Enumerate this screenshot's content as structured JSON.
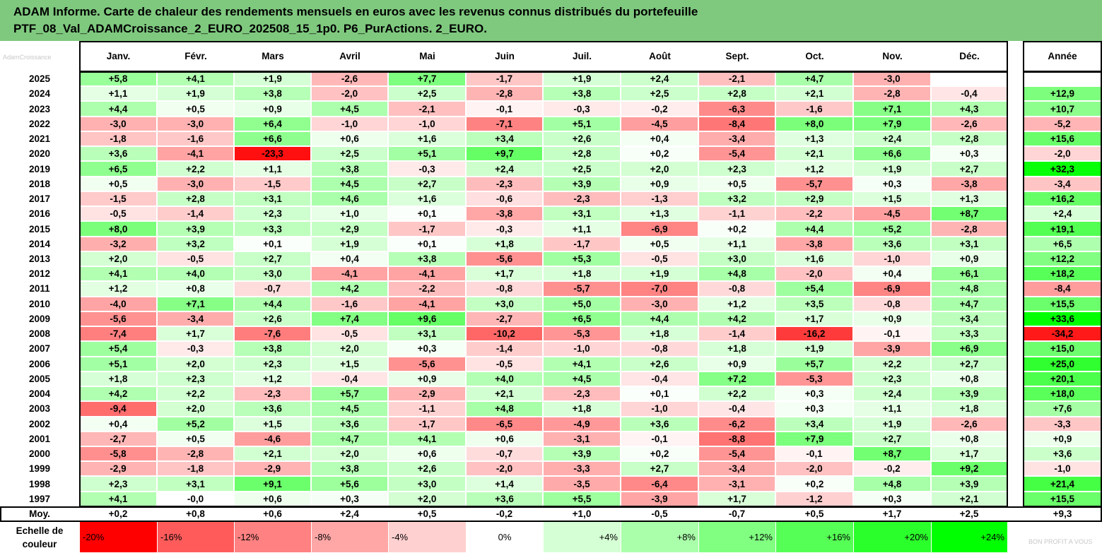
{
  "title_line1": "ADAM Informe. Carte de chaleur des rendements mensuels en euros avec les revenus connus distribués du portefeuille",
  "title_line2": "PTF_08_Val_ADAMCroissance_2_EURO_202508_15_1p0. P6_PurActions. 2_EURO.",
  "watermark": "AdamCroissance",
  "footer_watermark": "BON PROFIT A VOUS",
  "chart_data": {
    "type": "heatmap",
    "months": [
      "Janv.",
      "Févr.",
      "Mars",
      "Avril",
      "Mai",
      "Juin",
      "Juil.",
      "Août",
      "Sept.",
      "Oct.",
      "Nov.",
      "Déc."
    ],
    "annual_label": "Année",
    "average_label": "Moy.",
    "rows": [
      {
        "year": "2025",
        "values": [
          "+5,8",
          "+4,1",
          "+1,9",
          "-2,6",
          "+7,7",
          "-1,7",
          "+1,9",
          "+2,4",
          "-2,1",
          "+4,7",
          "-3,0",
          ""
        ],
        "annual": ""
      },
      {
        "year": "2024",
        "values": [
          "+1,1",
          "+1,9",
          "+3,8",
          "-2,0",
          "+2,5",
          "-2,8",
          "+3,8",
          "+2,5",
          "+2,8",
          "+2,1",
          "-2,8",
          "-0,4"
        ],
        "annual": "+12,9"
      },
      {
        "year": "2023",
        "values": [
          "+4,4",
          "+0,5",
          "+0,9",
          "+4,5",
          "-2,1",
          "-0,1",
          "-0,3",
          "-0,2",
          "-6,3",
          "-1,6",
          "+7,1",
          "+4,3"
        ],
        "annual": "+10,7"
      },
      {
        "year": "2022",
        "values": [
          "-3,0",
          "-3,0",
          "+6,4",
          "-1,0",
          "-1,0",
          "-7,1",
          "+5,1",
          "-4,5",
          "-8,4",
          "+8,0",
          "+7,9",
          "-2,6"
        ],
        "annual": "-5,2"
      },
      {
        "year": "2021",
        "values": [
          "-1,8",
          "-1,6",
          "+6,6",
          "+0,6",
          "+1,6",
          "+3,4",
          "+2,6",
          "+0,4",
          "-3,4",
          "+1,3",
          "+2,4",
          "+2,8"
        ],
        "annual": "+15,6"
      },
      {
        "year": "2020",
        "values": [
          "+3,6",
          "-4,1",
          "-23,3",
          "+2,5",
          "+5,1",
          "+9,7",
          "+2,8",
          "+0,2",
          "-5,4",
          "+2,1",
          "+6,6",
          "+0,3"
        ],
        "annual": "-2,0"
      },
      {
        "year": "2019",
        "values": [
          "+6,5",
          "+2,2",
          "+1,1",
          "+3,8",
          "-0,3",
          "+2,4",
          "+2,5",
          "+2,0",
          "+2,3",
          "+1,2",
          "+1,9",
          "+2,7"
        ],
        "annual": "+32,3"
      },
      {
        "year": "2018",
        "values": [
          "+0,5",
          "-3,0",
          "-1,5",
          "+4,5",
          "+2,7",
          "-2,3",
          "+3,9",
          "+0,9",
          "+0,5",
          "-5,7",
          "+0,3",
          "-3,8"
        ],
        "annual": "-3,4"
      },
      {
        "year": "2017",
        "values": [
          "-1,5",
          "+2,8",
          "+3,1",
          "+4,6",
          "+1,6",
          "-0,6",
          "-2,3",
          "-1,3",
          "+3,2",
          "+2,9",
          "+1,5",
          "+1,3"
        ],
        "annual": "+16,2"
      },
      {
        "year": "2016",
        "values": [
          "-0,5",
          "-1,4",
          "+2,3",
          "+1,0",
          "+0,1",
          "-3,8",
          "+3,1",
          "+1,3",
          "-1,1",
          "-2,2",
          "-4,5",
          "+8,7"
        ],
        "annual": "+2,4"
      },
      {
        "year": "2015",
        "values": [
          "+8,0",
          "+3,9",
          "+3,3",
          "+2,9",
          "-1,7",
          "-0,3",
          "+1,1",
          "-6,9",
          "+0,2",
          "+4,4",
          "+5,2",
          "-2,8"
        ],
        "annual": "+19,1"
      },
      {
        "year": "2014",
        "values": [
          "-3,2",
          "+3,2",
          "+0,1",
          "+1,9",
          "+0,1",
          "+1,8",
          "-1,7",
          "+0,5",
          "+1,1",
          "-3,8",
          "+3,6",
          "+3,1"
        ],
        "annual": "+6,5"
      },
      {
        "year": "2013",
        "values": [
          "+2,0",
          "-0,5",
          "+2,7",
          "+0,4",
          "+3,8",
          "-5,6",
          "+5,3",
          "-0,5",
          "+3,0",
          "+1,6",
          "-1,0",
          "+0,9"
        ],
        "annual": "+12,2"
      },
      {
        "year": "2012",
        "values": [
          "+4,1",
          "+4,0",
          "+3,0",
          "-4,1",
          "-4,1",
          "+1,7",
          "+1,8",
          "+1,9",
          "+4,8",
          "-2,0",
          "+0,4",
          "+6,1"
        ],
        "annual": "+18,2"
      },
      {
        "year": "2011",
        "values": [
          "+1,2",
          "+0,8",
          "-0,7",
          "+4,2",
          "-2,2",
          "-0,8",
          "-5,7",
          "-7,0",
          "-0,8",
          "+5,4",
          "-6,9",
          "+4,8"
        ],
        "annual": "-8,4"
      },
      {
        "year": "2010",
        "values": [
          "-4,0",
          "+7,1",
          "+4,4",
          "-1,6",
          "-4,1",
          "+3,0",
          "+5,0",
          "-3,0",
          "+1,2",
          "+3,5",
          "-0,8",
          "+4,7"
        ],
        "annual": "+15,5"
      },
      {
        "year": "2009",
        "values": [
          "-5,6",
          "-3,4",
          "+2,6",
          "+7,4",
          "+9,6",
          "-2,7",
          "+6,5",
          "+4,4",
          "+4,2",
          "+1,7",
          "+0,9",
          "+3,4"
        ],
        "annual": "+33,6"
      },
      {
        "year": "2008",
        "values": [
          "-7,4",
          "+1,7",
          "-7,6",
          "-0,5",
          "+3,1",
          "-10,2",
          "-5,3",
          "+1,8",
          "-1,4",
          "-16,2",
          "-0,1",
          "+3,3"
        ],
        "annual": "-34,2"
      },
      {
        "year": "2007",
        "values": [
          "+5,4",
          "-0,3",
          "+3,8",
          "+2,0",
          "+0,3",
          "-1,4",
          "-1,0",
          "-0,8",
          "+1,8",
          "+1,9",
          "-3,9",
          "+6,9"
        ],
        "annual": "+15,0"
      },
      {
        "year": "2006",
        "values": [
          "+5,1",
          "+2,0",
          "+2,3",
          "+1,5",
          "-5,6",
          "-0,5",
          "+4,1",
          "+2,6",
          "+0,9",
          "+5,7",
          "+2,2",
          "+2,7"
        ],
        "annual": "+25,0"
      },
      {
        "year": "2005",
        "values": [
          "+1,8",
          "+2,3",
          "+1,2",
          "-0,4",
          "+0,9",
          "+4,0",
          "+4,5",
          "-0,4",
          "+7,2",
          "-5,3",
          "+2,3",
          "+0,8"
        ],
        "annual": "+20,1"
      },
      {
        "year": "2004",
        "values": [
          "+4,2",
          "+2,2",
          "-2,3",
          "+5,7",
          "-2,9",
          "+2,1",
          "-2,3",
          "+0,1",
          "+2,2",
          "+0,3",
          "+2,4",
          "+3,9"
        ],
        "annual": "+18,0"
      },
      {
        "year": "2003",
        "values": [
          "-9,4",
          "+2,0",
          "+3,6",
          "+4,5",
          "-1,1",
          "+4,8",
          "+1,8",
          "-1,0",
          "-0,4",
          "+0,3",
          "+1,1",
          "+1,8"
        ],
        "annual": "+7,6"
      },
      {
        "year": "2002",
        "values": [
          "+0,4",
          "+5,2",
          "+1,5",
          "+3,6",
          "-1,7",
          "-6,5",
          "-4,9",
          "+3,6",
          "-6,2",
          "+3,4",
          "+1,9",
          "-2,6"
        ],
        "annual": "-3,3"
      },
      {
        "year": "2001",
        "values": [
          "-2,7",
          "+0,5",
          "-4,6",
          "+4,7",
          "+4,1",
          "+0,6",
          "-3,1",
          "-0,1",
          "-8,8",
          "+7,9",
          "+2,7",
          "+0,8"
        ],
        "annual": "+0,9"
      },
      {
        "year": "2000",
        "values": [
          "-5,8",
          "-2,8",
          "+2,1",
          "+2,0",
          "+0,6",
          "-0,7",
          "+3,9",
          "+0,2",
          "-5,4",
          "-0,1",
          "+8,7",
          "+1,7"
        ],
        "annual": "+3,6"
      },
      {
        "year": "1999",
        "values": [
          "-2,9",
          "-1,8",
          "-2,9",
          "+3,8",
          "+2,6",
          "-2,0",
          "-3,3",
          "+2,7",
          "-3,4",
          "-2,0",
          "-0,2",
          "+9,2"
        ],
        "annual": "-1,0"
      },
      {
        "year": "1998",
        "values": [
          "+2,3",
          "+3,1",
          "+9,1",
          "+5,6",
          "+3,0",
          "+1,4",
          "-3,5",
          "-6,4",
          "-3,1",
          "+0,2",
          "+4,8",
          "+3,9"
        ],
        "annual": "+21,4"
      },
      {
        "year": "1997",
        "values": [
          "+4,1",
          "-0,0",
          "+0,6",
          "+0,3",
          "+2,0",
          "+3,6",
          "+5,5",
          "-3,9",
          "+1,7",
          "-1,2",
          "+0,3",
          "+2,1"
        ],
        "annual": "+15,5"
      }
    ],
    "average": {
      "values": [
        "+0,2",
        "+0,8",
        "+0,6",
        "+2,4",
        "+0,5",
        "-0,2",
        "+1,0",
        "-0,5",
        "-0,7",
        "+0,5",
        "+1,7",
        "+2,5"
      ],
      "annual": "+9,3"
    },
    "scale_label_line1": "Echelle de",
    "scale_label_line2": "couleur",
    "scale": [
      "-20%",
      "-16%",
      "-12%",
      "-8%",
      "-4%",
      "0%",
      "+4%",
      "+8%",
      "+12%",
      "+16%",
      "+20%",
      "+24%"
    ],
    "colors": {
      "title_bg": "#7fc97f",
      "negative_max": "#ff0000",
      "positive_max": "#00ff00",
      "neutral": "#ffffff"
    }
  }
}
